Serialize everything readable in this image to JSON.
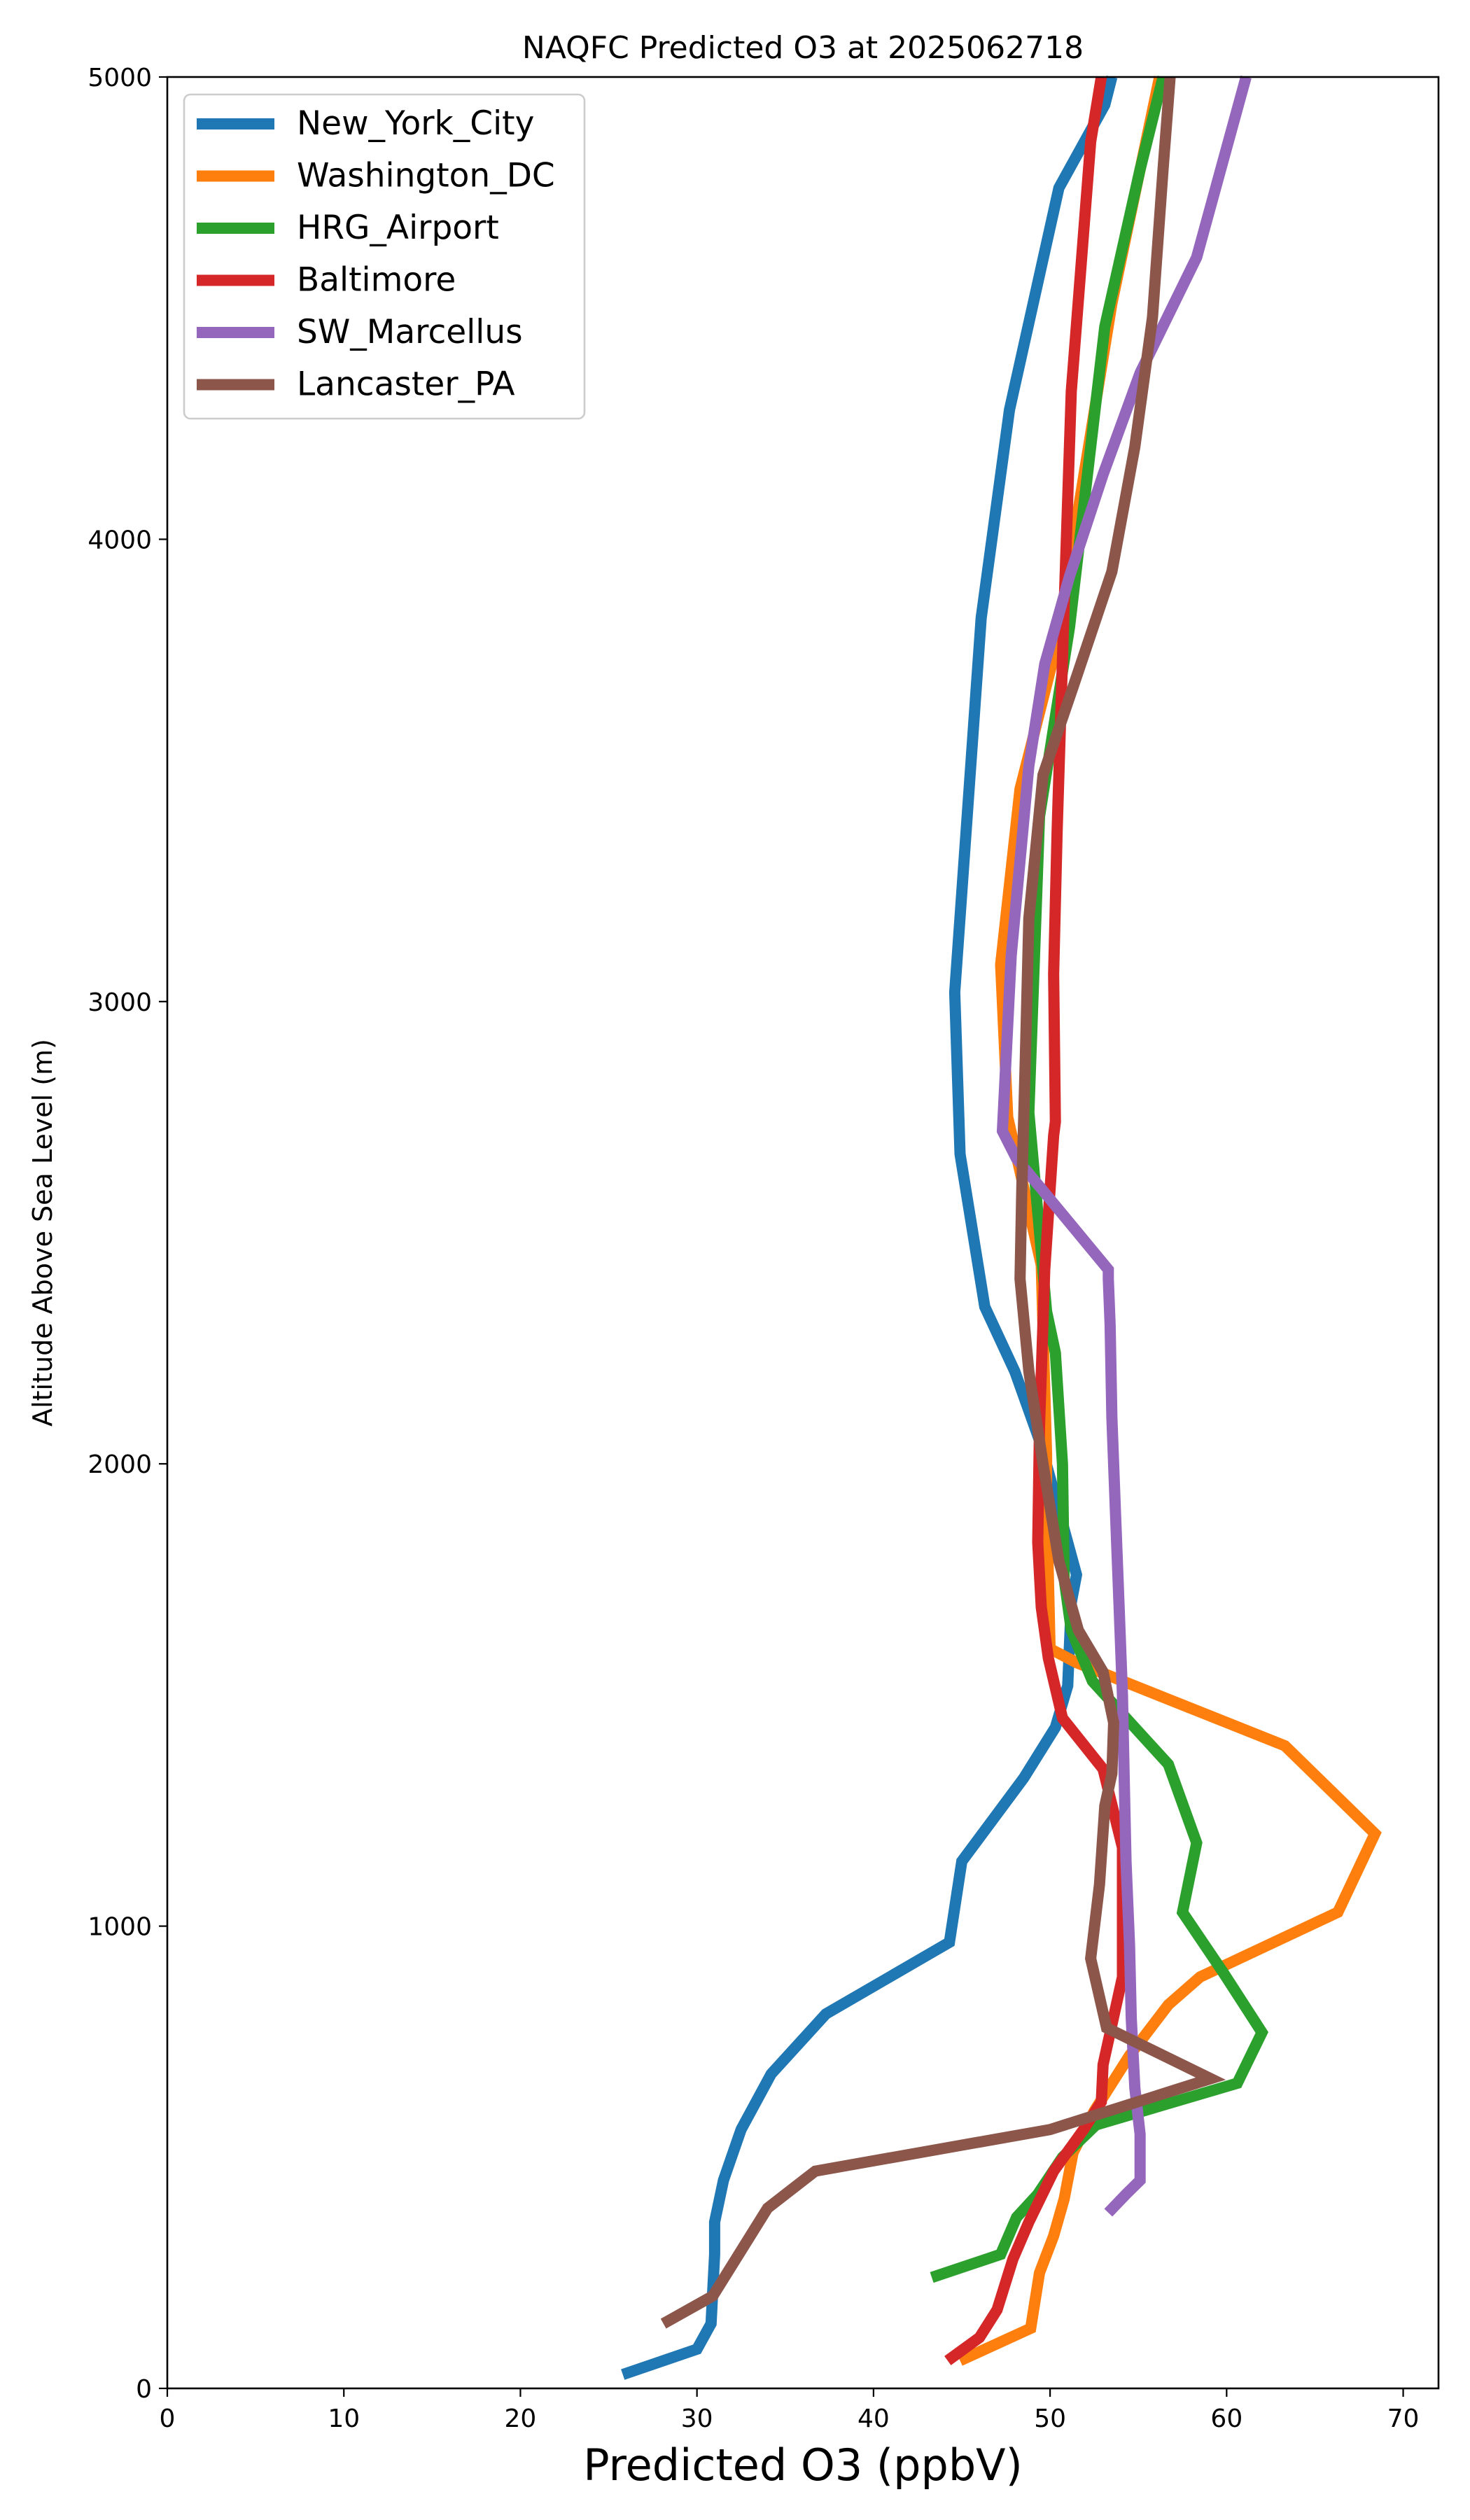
{
  "chart_data": {
    "type": "line",
    "title": "NAQFC Predicted O3 at 2025062718",
    "xlabel": "Predicted O3 (ppbV)",
    "ylabel": "Altitude Above Sea Level (m)",
    "xlim": [
      0,
      72
    ],
    "ylim": [
      0,
      5000
    ],
    "xticks": [
      0,
      10,
      20,
      30,
      40,
      50,
      60,
      70
    ],
    "yticks": [
      0,
      1000,
      2000,
      3000,
      4000,
      5000
    ],
    "grid": false,
    "legend_position": "upper-left",
    "series": [
      {
        "name": "New_York_City",
        "color": "#1f77b4",
        "x": [
          25.8,
          30.0,
          30.8,
          31.0,
          31.0,
          31.5,
          32.5,
          34.2,
          37.3,
          44.3,
          45.0,
          48.5,
          50.3,
          51.0,
          51.2,
          51.5,
          49.5,
          48.0,
          46.3,
          44.9,
          44.6,
          46.1,
          47.7,
          50.5,
          53.1,
          53.5
        ],
        "y": [
          30,
          85,
          140,
          290,
          360,
          450,
          560,
          680,
          810,
          965,
          1140,
          1320,
          1430,
          1520,
          1700,
          1760,
          2040,
          2200,
          2340,
          2670,
          3020,
          3830,
          4280,
          4760,
          4940,
          5000
        ]
      },
      {
        "name": "Washington_DC",
        "color": "#ff7f0e",
        "x": [
          44.9,
          48.9,
          49.4,
          50.2,
          50.8,
          51.3,
          52.5,
          54.5,
          56.7,
          58.5,
          66.3,
          68.4,
          63.3,
          51.5,
          50.0,
          49.8,
          49.8,
          49.5,
          47.6,
          47.2,
          48.3,
          50.3,
          53.5,
          56.2
        ],
        "y": [
          60,
          130,
          250,
          330,
          410,
          510,
          600,
          720,
          830,
          890,
          1030,
          1200,
          1390,
          1570,
          1600,
          1920,
          2020,
          2430,
          2750,
          3080,
          3460,
          3760,
          4510,
          5000
        ]
      },
      {
        "name": "HRG_Airport",
        "color": "#2ca02c",
        "x": [
          43.3,
          47.2,
          48.1,
          49.3,
          50.7,
          52.6,
          60.6,
          62.0,
          59.8,
          57.5,
          58.3,
          56.7,
          52.4,
          51.2,
          50.8,
          50.7,
          50.3,
          49.8,
          48.8,
          49.4,
          51.1,
          53.1,
          55.1,
          56.4
        ],
        "y": [
          240,
          290,
          370,
          420,
          500,
          570,
          660,
          770,
          900,
          1030,
          1180,
          1350,
          1530,
          1640,
          1750,
          2000,
          2240,
          2330,
          2760,
          3400,
          3810,
          4460,
          4800,
          5000
        ]
      },
      {
        "name": "Baltimore",
        "color": "#d62728",
        "x": [
          44.2,
          46.0,
          47.0,
          47.9,
          48.8,
          50.2,
          51.9,
          52.9,
          53.0,
          54.1,
          54.1,
          53.0,
          50.7,
          49.9,
          49.5,
          49.3,
          49.4,
          49.7,
          50.2,
          50.3,
          50.2,
          50.4,
          50.8,
          51.2,
          52.3,
          52.9
        ],
        "y": [
          60,
          110,
          170,
          280,
          360,
          470,
          560,
          620,
          700,
          890,
          1170,
          1340,
          1450,
          1580,
          1690,
          1830,
          2080,
          2420,
          2710,
          2740,
          3060,
          3370,
          3860,
          4320,
          4860,
          5000
        ]
      },
      {
        "name": "SW_Marcellus",
        "color": "#9467bd",
        "x": [
          53.3,
          54.3,
          55.1,
          55.1,
          54.8,
          54.6,
          54.5,
          54.3,
          54.2,
          54.1,
          53.9,
          53.7,
          53.5,
          53.4,
          53.3,
          53.3,
          48.1,
          47.3,
          47.8,
          48.8,
          49.7,
          51.1,
          53.0,
          55.1,
          58.3,
          61.1
        ],
        "y": [
          380,
          420,
          450,
          550,
          650,
          800,
          960,
          1140,
          1320,
          1500,
          1700,
          1900,
          2100,
          2300,
          2400,
          2420,
          2660,
          2720,
          3100,
          3510,
          3730,
          3920,
          4140,
          4360,
          4610,
          5000
        ]
      },
      {
        "name": "Lancaster_PA",
        "color": "#8c564b",
        "x": [
          28.1,
          30.9,
          34.0,
          36.7,
          50.0,
          59.1,
          53.2,
          52.3,
          52.8,
          53.1,
          53.5,
          53.6,
          53.0,
          51.6,
          50.5,
          49.6,
          48.8,
          48.3,
          48.4,
          48.6,
          48.8,
          49.6,
          51.3,
          53.5,
          54.8,
          55.8,
          56.4,
          56.8
        ],
        "y": [
          140,
          200,
          390,
          470,
          560,
          670,
          780,
          930,
          1090,
          1260,
          1330,
          1440,
          1550,
          1640,
          1790,
          2000,
          2200,
          2400,
          2600,
          2880,
          3180,
          3490,
          3680,
          3930,
          4200,
          4480,
          4800,
          5000
        ]
      }
    ]
  }
}
